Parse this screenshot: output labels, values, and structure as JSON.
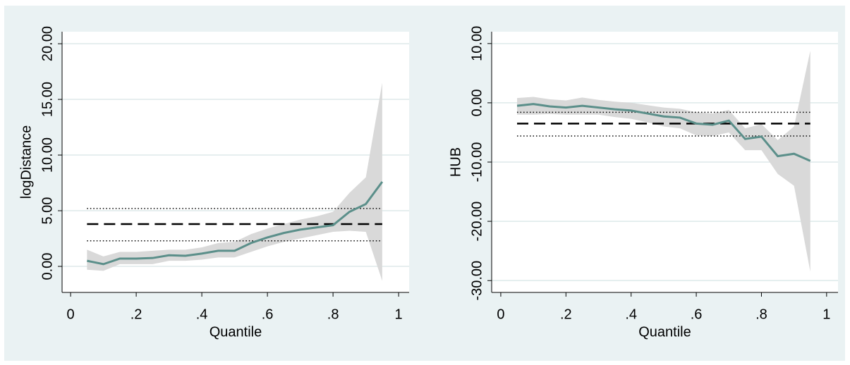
{
  "chart_data": [
    {
      "type": "line",
      "y_label": "logDistance",
      "x_label": "Quantile",
      "x": [
        0.05,
        0.1,
        0.15,
        0.2,
        0.25,
        0.3,
        0.35,
        0.4,
        0.45,
        0.5,
        0.55,
        0.6,
        0.65,
        0.7,
        0.75,
        0.8,
        0.85,
        0.9,
        0.95
      ],
      "series": [
        {
          "color": "#5b8f8a",
          "values": [
            0.5,
            0.2,
            0.7,
            0.7,
            0.75,
            1.0,
            0.95,
            1.15,
            1.4,
            1.4,
            2.1,
            2.6,
            3.0,
            3.3,
            3.5,
            3.7,
            4.9,
            5.6,
            7.6
          ]
        }
      ],
      "band": {
        "color": "#d9d9d9",
        "lower": [
          -0.3,
          -0.4,
          0.2,
          0.2,
          0.2,
          0.5,
          0.5,
          0.6,
          0.8,
          0.8,
          1.3,
          1.8,
          2.2,
          2.5,
          2.8,
          3.1,
          3.2,
          3.1,
          -1.3
        ],
        "upper": [
          1.5,
          0.9,
          1.3,
          1.3,
          1.4,
          1.5,
          1.5,
          1.7,
          2.1,
          2.2,
          2.9,
          3.4,
          3.8,
          4.2,
          4.5,
          4.9,
          6.6,
          8.0,
          16.5
        ]
      },
      "hlines": [
        {
          "value": 3.8,
          "style": "dashed"
        },
        {
          "value": 5.2,
          "style": "dotted"
        },
        {
          "value": 2.3,
          "style": "dotted"
        }
      ],
      "xlim": [
        -0.026,
        1.032
      ],
      "ylim": [
        -2.34,
        21.08
      ],
      "xticks": [
        0,
        {
          "value": 0.2,
          "label": ".2"
        },
        {
          "value": 0.4,
          "label": ".4"
        },
        {
          "value": 0.6,
          "label": ".6"
        },
        {
          "value": 0.8,
          "label": ".8"
        },
        1
      ],
      "yticks": [
        {
          "value": 0,
          "label": "0.00"
        },
        {
          "value": 5,
          "label": "5.00"
        },
        {
          "value": 10,
          "label": "10.00"
        },
        {
          "value": 15,
          "label": "15.00"
        },
        {
          "value": 20,
          "label": "20.00"
        }
      ],
      "grid": true
    },
    {
      "type": "line",
      "y_label": "HUB",
      "x_label": "Quantile",
      "x": [
        0.05,
        0.1,
        0.15,
        0.2,
        0.25,
        0.3,
        0.35,
        0.4,
        0.45,
        0.5,
        0.55,
        0.6,
        0.65,
        0.7,
        0.75,
        0.8,
        0.85,
        0.9,
        0.95
      ],
      "series": [
        {
          "color": "#5b8f8a",
          "values": [
            -0.5,
            -0.2,
            -0.6,
            -0.8,
            -0.5,
            -0.8,
            -1.1,
            -1.3,
            -1.8,
            -2.3,
            -2.5,
            -3.5,
            -3.7,
            -3.0,
            -6.1,
            -5.7,
            -9.0,
            -8.6,
            -9.8
          ]
        }
      ],
      "band": {
        "color": "#d9d9d9",
        "lower": [
          -2,
          -2,
          -1.9,
          -2,
          -2,
          -2,
          -2.4,
          -2.7,
          -3.3,
          -4,
          -4.3,
          -5.5,
          -5.6,
          -5,
          -8,
          -8,
          -12,
          -14,
          -28.5
        ],
        "upper": [
          0.8,
          1,
          0.6,
          0.4,
          0.9,
          0.5,
          0.2,
          0,
          -0.4,
          -0.8,
          -1,
          -1.6,
          -1.8,
          -1.2,
          -4.3,
          -3.6,
          -6.3,
          -4,
          8.8
        ]
      },
      "hlines": [
        {
          "value": -3.5,
          "style": "dashed"
        },
        {
          "value": -1.6,
          "style": "dotted"
        },
        {
          "value": -5.6,
          "style": "dotted"
        }
      ],
      "xlim": [
        -0.028,
        1.035
      ],
      "ylim": [
        -32.0,
        12.0
      ],
      "xticks": [
        0,
        {
          "value": 0.2,
          "label": ".2"
        },
        {
          "value": 0.4,
          "label": ".4"
        },
        {
          "value": 0.6,
          "label": ".6"
        },
        {
          "value": 0.8,
          "label": ".8"
        },
        1
      ],
      "yticks": [
        {
          "value": -30,
          "label": "-30.00"
        },
        {
          "value": -20,
          "label": "-20.00"
        },
        {
          "value": -10,
          "label": "-10.00"
        },
        {
          "value": 0,
          "label": "0.00"
        },
        {
          "value": 10,
          "label": "10.00"
        }
      ],
      "grid": true
    }
  ]
}
